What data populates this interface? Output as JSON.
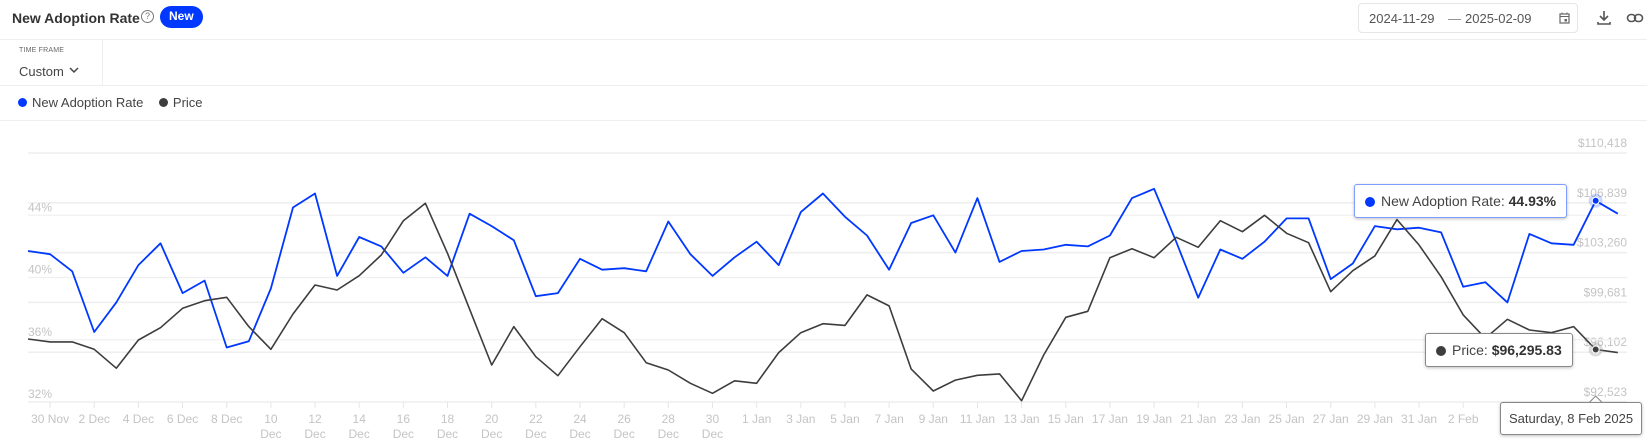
{
  "header": {
    "title": "New Adoption Rate",
    "help_icon": "question-circle-icon",
    "badge": "New",
    "date_from": "2024-11-29",
    "date_sep": "—",
    "date_to": "2025-02-09"
  },
  "timeframe": {
    "label": "TIME FRAME",
    "value": "Custom"
  },
  "colors": {
    "adoption": "#0038ff",
    "price": "#3d3d3d",
    "badge": "#0038ff"
  },
  "tooltip": {
    "adoption_label": "New Adoption Rate:",
    "adoption_value": "44.93%",
    "price_label": "Price:",
    "price_value": "$96,295.83",
    "date": "Saturday, 8 Feb 2025"
  },
  "chart_data": {
    "type": "line",
    "x_range": [
      "2024-11-29",
      "2025-02-09"
    ],
    "x_ticks": [
      [
        "30 Nov"
      ],
      [
        "2 Dec"
      ],
      [
        "4 Dec"
      ],
      [
        "6 Dec"
      ],
      [
        "8 Dec"
      ],
      [
        "10",
        "Dec"
      ],
      [
        "12",
        "Dec"
      ],
      [
        "14",
        "Dec"
      ],
      [
        "16",
        "Dec"
      ],
      [
        "18",
        "Dec"
      ],
      [
        "20",
        "Dec"
      ],
      [
        "22",
        "Dec"
      ],
      [
        "24",
        "Dec"
      ],
      [
        "26",
        "Dec"
      ],
      [
        "28",
        "Dec"
      ],
      [
        "30",
        "Dec"
      ],
      [
        "1 Jan"
      ],
      [
        "3 Jan"
      ],
      [
        "5 Jan"
      ],
      [
        "7 Jan"
      ],
      [
        "9 Jan"
      ],
      [
        "11 Jan"
      ],
      [
        "13 Jan"
      ],
      [
        "15 Jan"
      ],
      [
        "17 Jan"
      ],
      [
        "19 Jan"
      ],
      [
        "21 Jan"
      ],
      [
        "23 Jan"
      ],
      [
        "25 Jan"
      ],
      [
        "27 Jan"
      ],
      [
        "29 Jan"
      ],
      [
        "31 Jan"
      ],
      [
        "2 Feb"
      ]
    ],
    "y_left": {
      "ticks": [
        "32%",
        "36%",
        "40%",
        "44%"
      ],
      "range": [
        32,
        48
      ]
    },
    "y_right": {
      "ticks": [
        "$92,523",
        "$96,102",
        "$99,681",
        "$103,260",
        "$106,839",
        "$110,418"
      ],
      "range": [
        92523,
        110418
      ]
    },
    "grid": true,
    "legend": "top-left",
    "series": [
      {
        "name": "New Adoption Rate",
        "axis": "left",
        "values": [
          41.7,
          41.5,
          40.4,
          36.5,
          38.4,
          40.8,
          42.2,
          39.0,
          39.8,
          35.5,
          35.9,
          39.3,
          44.5,
          45.4,
          40.1,
          42.6,
          42.0,
          40.3,
          41.3,
          40.1,
          44.1,
          43.3,
          42.4,
          38.8,
          39.0,
          41.2,
          40.5,
          40.6,
          40.4,
          43.6,
          41.5,
          40.1,
          41.3,
          42.3,
          40.8,
          44.2,
          45.4,
          43.9,
          42.7,
          40.5,
          43.5,
          44.0,
          41.6,
          45.1,
          41.0,
          41.7,
          41.8,
          42.1,
          42.0,
          42.7,
          45.1,
          45.7,
          42.3,
          38.7,
          41.8,
          41.2,
          42.3,
          43.8,
          43.8,
          39.9,
          40.9,
          43.3,
          43.1,
          43.2,
          42.9,
          39.4,
          39.7,
          38.4,
          42.8,
          42.2,
          42.1,
          44.93,
          44.1
        ]
      },
      {
        "name": "Price",
        "axis": "right",
        "values": [
          97050,
          96840,
          96840,
          96310,
          94950,
          96980,
          97860,
          99260,
          99800,
          100050,
          97940,
          96310,
          98850,
          100930,
          100570,
          101600,
          103090,
          105550,
          106800,
          103210,
          99190,
          95180,
          97940,
          95780,
          94410,
          96500,
          98510,
          97500,
          95350,
          94820,
          93870,
          93150,
          94050,
          93870,
          96070,
          97500,
          98150,
          98030,
          100220,
          99430,
          94890,
          93310,
          94100,
          94440,
          94540,
          92620,
          95900,
          98610,
          99040,
          102890,
          103540,
          102890,
          104360,
          103640,
          105550,
          104760,
          105940,
          104650,
          103970,
          100450,
          101960,
          103020,
          105630,
          103810,
          101530,
          98780,
          97100,
          98470,
          97700,
          97500,
          97940,
          96295.83,
          96070
        ]
      }
    ]
  }
}
